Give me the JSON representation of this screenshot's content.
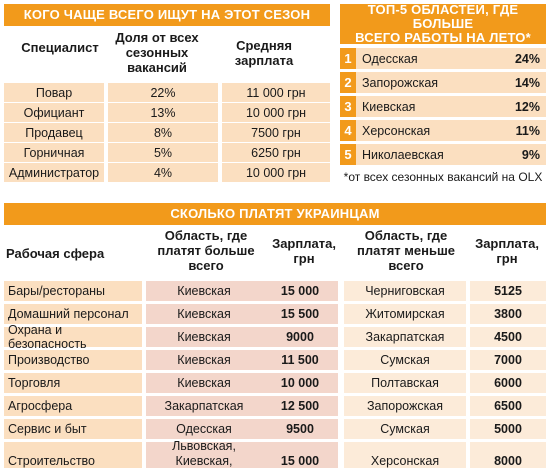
{
  "left_table": {
    "title": "КОГО ЧАЩЕ ВСЕГО ИЩУТ НА ЭТОТ СЕЗОН",
    "col1": "Специалист",
    "col2": "Доля от всех сезонных вакансий",
    "col3": "Средняя зарплата",
    "rows": [
      {
        "name": "Повар",
        "share": "22%",
        "salary": "11 000 грн"
      },
      {
        "name": "Официант",
        "share": "13%",
        "salary": "10 000 грн"
      },
      {
        "name": "Продавец",
        "share": "8%",
        "salary": "7500 грн"
      },
      {
        "name": "Горничная",
        "share": "5%",
        "salary": "6250 грн"
      },
      {
        "name": "Администратор",
        "share": "4%",
        "salary": "10 000 грн"
      }
    ]
  },
  "top5": {
    "title_line1": "ТОП-5 ОБЛАСТЕЙ, ГДЕ БОЛЬШЕ",
    "title_line2": "ВСЕГО РАБОТЫ НА ЛЕТО*",
    "rows": [
      {
        "n": "1",
        "region": "Одесская",
        "pct": "24%"
      },
      {
        "n": "2",
        "region": "Запорожская",
        "pct": "14%"
      },
      {
        "n": "3",
        "region": "Киевская",
        "pct": "12%"
      },
      {
        "n": "4",
        "region": "Херсонская",
        "pct": "11%"
      },
      {
        "n": "5",
        "region": "Николаевская",
        "pct": "9%"
      }
    ],
    "note": "*от всех сезонных вакансий на OLX"
  },
  "bottom_table": {
    "title": "СКОЛЬКО ПЛАТЯТ УКРАИНЦАМ",
    "col1": "Рабочая сфера",
    "col2": "Область, где платят больше всего",
    "col3": "Зарплата, грн",
    "col4": "Область, где платят меньше всего",
    "col5": "Зарплата, грн",
    "rows": [
      {
        "sphere": "Бары/рестораны",
        "high_region": "Киевская",
        "high_salary": "15 000",
        "low_region": "Черниговская",
        "low_salary": "5125"
      },
      {
        "sphere": "Домашний персонал",
        "high_region": "Киевская",
        "high_salary": "15 500",
        "low_region": "Житомирская",
        "low_salary": "3800"
      },
      {
        "sphere": "Охрана и безопасность",
        "high_region": "Киевская",
        "high_salary": "9000",
        "low_region": "Закарпатская",
        "low_salary": "4500"
      },
      {
        "sphere": "Производство",
        "high_region": "Киевская",
        "high_salary": "11 500",
        "low_region": "Сумская",
        "low_salary": "7000"
      },
      {
        "sphere": "Торговля",
        "high_region": "Киевская",
        "high_salary": "10 000",
        "low_region": "Полтавская",
        "low_salary": "6000"
      },
      {
        "sphere": "Агросфера",
        "high_region": "Закарпатская",
        "high_salary": "12 500",
        "low_region": "Запорожская",
        "low_salary": "6500"
      },
      {
        "sphere": "Сервис и быт",
        "high_region": "Одесская",
        "high_salary": "9500",
        "low_region": "Сумская",
        "low_salary": "5000"
      },
      {
        "sphere": "Строительство",
        "high_region": "Львовская, Киевская, Закарпатская",
        "high_salary": "15 000",
        "low_region": "Херсонская",
        "low_salary": "8000"
      }
    ]
  }
}
